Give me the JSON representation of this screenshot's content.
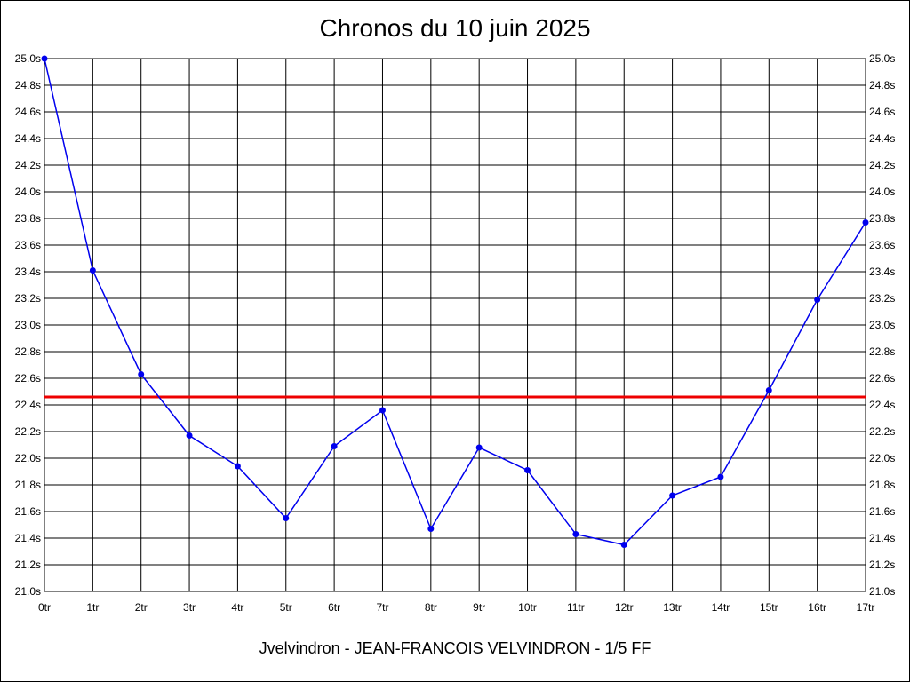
{
  "chart_data": {
    "type": "line",
    "title": "Chronos du 10 juin 2025",
    "footer": "Jvelvindron - JEAN-FRANCOIS VELVINDRON - 1/5 FF",
    "x": [
      "0tr",
      "1tr",
      "2tr",
      "3tr",
      "4tr",
      "5tr",
      "6tr",
      "7tr",
      "8tr",
      "9tr",
      "10tr",
      "11tr",
      "12tr",
      "13tr",
      "14tr",
      "15tr",
      "16tr",
      "17tr"
    ],
    "series": [
      {
        "values": [
          25.0,
          23.41,
          22.63,
          22.17,
          21.94,
          21.55,
          22.09,
          22.36,
          21.47,
          22.08,
          21.91,
          21.43,
          21.35,
          21.72,
          21.86,
          22.51,
          23.19,
          23.77
        ],
        "color": "#0000ee"
      }
    ],
    "reference_line": {
      "value": 22.46,
      "color": "#ee0000"
    },
    "ylim": [
      21.0,
      25.0
    ],
    "y_ticks": [
      "21.0s",
      "21.2s",
      "21.4s",
      "21.6s",
      "21.8s",
      "22.0s",
      "22.2s",
      "22.4s",
      "22.6s",
      "22.8s",
      "23.0s",
      "23.2s",
      "23.4s",
      "23.6s",
      "23.8s",
      "24.0s",
      "24.2s",
      "24.4s",
      "24.6s",
      "24.8s",
      "25.0s"
    ],
    "grid": true,
    "y_axis_labels_both_sides": true
  }
}
